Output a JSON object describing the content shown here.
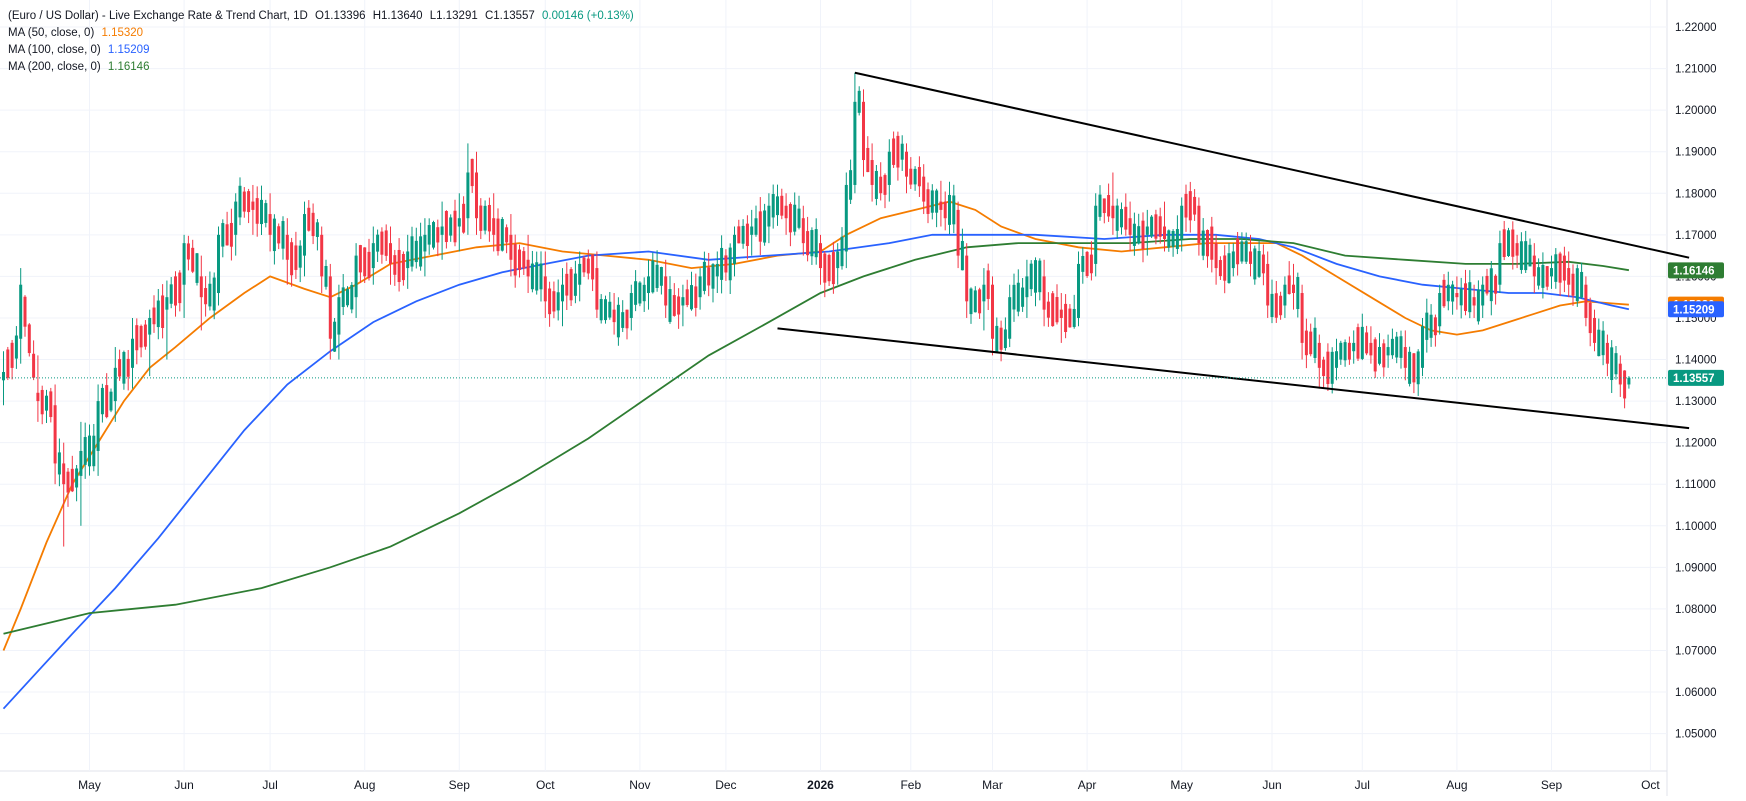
{
  "legend": {
    "title": "(Euro / US Dollar) - Live Exchange Rate & Trend Chart, 1D",
    "open": "O1.13396",
    "high": "H1.13640",
    "low": "L1.13291",
    "close": "C1.13557",
    "change": "0.00146 (+0.13%)",
    "ma50_label": "MA (50, close, 0)",
    "ma50_value": "1.15320",
    "ma100_label": "MA (100, close, 0)",
    "ma100_value": "1.15209",
    "ma200_label": "MA (200, close, 0)",
    "ma200_value": "1.16146"
  },
  "chart_data": {
    "type": "candlestick",
    "y_axis": {
      "position": "right",
      "ylim": [
        1.041,
        1.2265
      ],
      "ticks": [
        1.05,
        1.06,
        1.07,
        1.08,
        1.09,
        1.1,
        1.11,
        1.12,
        1.13,
        1.14,
        1.15,
        1.16,
        1.17,
        1.18,
        1.19,
        1.2,
        1.21,
        1.22
      ],
      "tick_labels": [
        "1.05000",
        "1.06000",
        "1.07000",
        "1.08000",
        "1.09000",
        "1.10000",
        "1.11000",
        "1.12000",
        "1.13000",
        "1.14000",
        "1.15000",
        "1.16000",
        "1.17000",
        "1.18000",
        "1.19000",
        "1.20000",
        "1.21000",
        "1.22000"
      ]
    },
    "x_axis": {
      "tick_labels": [
        "May",
        "Jun",
        "Jul",
        "Aug",
        "Sep",
        "Oct",
        "Nov",
        "Dec",
        "2026",
        "Feb",
        "Mar",
        "Apr",
        "May",
        "Jun",
        "Jul",
        "Aug",
        "Sep",
        "Oct"
      ],
      "tick_index": [
        20,
        42,
        62,
        84,
        106,
        126,
        148,
        168,
        190,
        211,
        230,
        252,
        274,
        295,
        316,
        338,
        360,
        383
      ]
    },
    "candles_ohlc_sampled": [
      [
        0,
        1.135,
        1.142,
        1.129,
        1.137
      ],
      [
        4,
        1.145,
        1.162,
        1.139,
        1.158
      ],
      [
        8,
        1.132,
        1.141,
        1.125,
        1.13
      ],
      [
        12,
        1.129,
        1.134,
        1.11,
        1.115
      ],
      [
        14,
        1.115,
        1.12,
        1.095,
        1.11
      ],
      [
        18,
        1.112,
        1.125,
        1.1,
        1.118
      ],
      [
        22,
        1.118,
        1.134,
        1.112,
        1.13
      ],
      [
        26,
        1.13,
        1.143,
        1.125,
        1.138
      ],
      [
        30,
        1.138,
        1.15,
        1.133,
        1.145
      ],
      [
        34,
        1.146,
        1.152,
        1.136,
        1.15
      ],
      [
        38,
        1.152,
        1.159,
        1.14,
        1.155
      ],
      [
        42,
        1.158,
        1.17,
        1.15,
        1.168
      ],
      [
        46,
        1.16,
        1.165,
        1.147,
        1.155
      ],
      [
        50,
        1.156,
        1.172,
        1.153,
        1.17
      ],
      [
        54,
        1.17,
        1.18,
        1.165,
        1.178
      ],
      [
        58,
        1.178,
        1.182,
        1.17,
        1.176
      ],
      [
        62,
        1.175,
        1.18,
        1.166,
        1.17
      ],
      [
        66,
        1.17,
        1.174,
        1.158,
        1.164
      ],
      [
        70,
        1.165,
        1.178,
        1.16,
        1.175
      ],
      [
        74,
        1.17,
        1.172,
        1.156,
        1.16
      ],
      [
        76,
        1.16,
        1.163,
        1.14,
        1.145
      ],
      [
        78,
        1.146,
        1.158,
        1.14,
        1.155
      ],
      [
        82,
        1.155,
        1.168,
        1.15,
        1.165
      ],
      [
        86,
        1.162,
        1.172,
        1.158,
        1.168
      ],
      [
        90,
        1.168,
        1.172,
        1.158,
        1.163
      ],
      [
        94,
        1.162,
        1.17,
        1.157,
        1.166
      ],
      [
        98,
        1.166,
        1.174,
        1.16,
        1.17
      ],
      [
        102,
        1.17,
        1.178,
        1.164,
        1.172
      ],
      [
        106,
        1.172,
        1.18,
        1.166,
        1.174
      ],
      [
        108,
        1.174,
        1.192,
        1.17,
        1.185
      ],
      [
        110,
        1.185,
        1.19,
        1.17,
        1.174
      ],
      [
        114,
        1.174,
        1.18,
        1.166,
        1.17
      ],
      [
        118,
        1.17,
        1.175,
        1.16,
        1.164
      ],
      [
        122,
        1.164,
        1.17,
        1.156,
        1.16
      ],
      [
        126,
        1.16,
        1.166,
        1.15,
        1.154
      ],
      [
        130,
        1.154,
        1.162,
        1.148,
        1.158
      ],
      [
        134,
        1.158,
        1.166,
        1.154,
        1.163
      ],
      [
        138,
        1.162,
        1.166,
        1.15,
        1.152
      ],
      [
        142,
        1.152,
        1.156,
        1.146,
        1.149
      ],
      [
        146,
        1.15,
        1.158,
        1.147,
        1.156
      ],
      [
        150,
        1.156,
        1.164,
        1.152,
        1.16
      ],
      [
        154,
        1.16,
        1.164,
        1.15,
        1.153
      ],
      [
        158,
        1.153,
        1.158,
        1.148,
        1.155
      ],
      [
        162,
        1.155,
        1.162,
        1.152,
        1.16
      ],
      [
        166,
        1.16,
        1.166,
        1.156,
        1.163
      ],
      [
        170,
        1.163,
        1.172,
        1.16,
        1.17
      ],
      [
        174,
        1.17,
        1.176,
        1.165,
        1.172
      ],
      [
        178,
        1.172,
        1.18,
        1.168,
        1.177
      ],
      [
        182,
        1.177,
        1.18,
        1.17,
        1.174
      ],
      [
        186,
        1.174,
        1.177,
        1.165,
        1.168
      ],
      [
        190,
        1.168,
        1.17,
        1.158,
        1.162
      ],
      [
        194,
        1.162,
        1.168,
        1.158,
        1.166
      ],
      [
        196,
        1.166,
        1.185,
        1.162,
        1.182
      ],
      [
        198,
        1.182,
        1.209,
        1.18,
        1.202
      ],
      [
        200,
        1.202,
        1.205,
        1.184,
        1.188
      ],
      [
        202,
        1.188,
        1.192,
        1.178,
        1.182
      ],
      [
        206,
        1.182,
        1.193,
        1.178,
        1.19
      ],
      [
        210,
        1.19,
        1.192,
        1.18,
        1.184
      ],
      [
        214,
        1.184,
        1.187,
        1.175,
        1.178
      ],
      [
        218,
        1.178,
        1.183,
        1.172,
        1.176
      ],
      [
        222,
        1.176,
        1.178,
        1.162,
        1.165
      ],
      [
        224,
        1.165,
        1.168,
        1.15,
        1.154
      ],
      [
        228,
        1.154,
        1.162,
        1.147,
        1.158
      ],
      [
        230,
        1.158,
        1.16,
        1.141,
        1.145
      ],
      [
        234,
        1.145,
        1.158,
        1.143,
        1.155
      ],
      [
        238,
        1.155,
        1.164,
        1.15,
        1.16
      ],
      [
        242,
        1.16,
        1.164,
        1.148,
        1.152
      ],
      [
        246,
        1.152,
        1.156,
        1.144,
        1.15
      ],
      [
        250,
        1.15,
        1.166,
        1.148,
        1.163
      ],
      [
        254,
        1.163,
        1.18,
        1.16,
        1.177
      ],
      [
        258,
        1.177,
        1.185,
        1.17,
        1.174
      ],
      [
        262,
        1.174,
        1.178,
        1.166,
        1.17
      ],
      [
        266,
        1.17,
        1.176,
        1.165,
        1.172
      ],
      [
        270,
        1.172,
        1.178,
        1.166,
        1.169
      ],
      [
        274,
        1.169,
        1.179,
        1.166,
        1.177
      ],
      [
        278,
        1.177,
        1.179,
        1.165,
        1.168
      ],
      [
        282,
        1.168,
        1.17,
        1.158,
        1.162
      ],
      [
        286,
        1.162,
        1.168,
        1.16,
        1.166
      ],
      [
        290,
        1.166,
        1.17,
        1.16,
        1.163
      ],
      [
        294,
        1.163,
        1.166,
        1.15,
        1.153
      ],
      [
        298,
        1.153,
        1.16,
        1.15,
        1.158
      ],
      [
        300,
        1.158,
        1.163,
        1.152,
        1.156
      ],
      [
        302,
        1.156,
        1.158,
        1.14,
        1.144
      ],
      [
        306,
        1.144,
        1.146,
        1.133,
        1.138
      ],
      [
        310,
        1.138,
        1.145,
        1.135,
        1.142
      ],
      [
        314,
        1.142,
        1.147,
        1.139,
        1.144
      ],
      [
        318,
        1.144,
        1.148,
        1.139,
        1.141
      ],
      [
        322,
        1.141,
        1.146,
        1.138,
        1.143
      ],
      [
        326,
        1.143,
        1.147,
        1.135,
        1.138
      ],
      [
        330,
        1.138,
        1.15,
        1.136,
        1.148
      ],
      [
        334,
        1.148,
        1.158,
        1.146,
        1.156
      ],
      [
        338,
        1.156,
        1.16,
        1.152,
        1.155
      ],
      [
        342,
        1.155,
        1.158,
        1.15,
        1.153
      ],
      [
        344,
        1.153,
        1.16,
        1.15,
        1.158
      ],
      [
        348,
        1.158,
        1.171,
        1.156,
        1.168
      ],
      [
        352,
        1.168,
        1.17,
        1.162,
        1.165
      ],
      [
        356,
        1.165,
        1.168,
        1.156,
        1.16
      ],
      [
        360,
        1.16,
        1.165,
        1.157,
        1.162
      ],
      [
        364,
        1.162,
        1.166,
        1.155,
        1.158
      ],
      [
        368,
        1.158,
        1.16,
        1.148,
        1.15
      ],
      [
        370,
        1.15,
        1.152,
        1.142,
        1.144
      ],
      [
        373,
        1.144,
        1.146,
        1.136,
        1.139
      ],
      [
        376,
        1.139,
        1.141,
        1.131,
        1.134
      ],
      [
        378,
        1.134,
        1.136,
        1.133,
        1.1356
      ]
    ],
    "series": [
      {
        "name": "MA (50, close, 0)",
        "color": "#f57c00",
        "last": 1.1532,
        "points": [
          [
            0,
            1.07
          ],
          [
            4,
            1.08
          ],
          [
            10,
            1.096
          ],
          [
            16,
            1.11
          ],
          [
            22,
            1.12
          ],
          [
            28,
            1.13
          ],
          [
            34,
            1.138
          ],
          [
            40,
            1.143
          ],
          [
            48,
            1.15
          ],
          [
            56,
            1.156
          ],
          [
            62,
            1.16
          ],
          [
            70,
            1.157
          ],
          [
            76,
            1.155
          ],
          [
            82,
            1.158
          ],
          [
            90,
            1.163
          ],
          [
            100,
            1.165
          ],
          [
            110,
            1.167
          ],
          [
            120,
            1.168
          ],
          [
            130,
            1.166
          ],
          [
            140,
            1.165
          ],
          [
            150,
            1.164
          ],
          [
            160,
            1.162
          ],
          [
            170,
            1.163
          ],
          [
            180,
            1.165
          ],
          [
            190,
            1.166
          ],
          [
            196,
            1.17
          ],
          [
            204,
            1.174
          ],
          [
            212,
            1.176
          ],
          [
            220,
            1.178
          ],
          [
            226,
            1.176
          ],
          [
            232,
            1.172
          ],
          [
            240,
            1.169
          ],
          [
            250,
            1.167
          ],
          [
            260,
            1.166
          ],
          [
            270,
            1.167
          ],
          [
            280,
            1.168
          ],
          [
            288,
            1.168
          ],
          [
            296,
            1.168
          ],
          [
            302,
            1.165
          ],
          [
            310,
            1.16
          ],
          [
            318,
            1.155
          ],
          [
            326,
            1.15
          ],
          [
            332,
            1.147
          ],
          [
            338,
            1.146
          ],
          [
            344,
            1.147
          ],
          [
            350,
            1.149
          ],
          [
            356,
            1.151
          ],
          [
            362,
            1.153
          ],
          [
            368,
            1.154
          ],
          [
            374,
            1.1535
          ],
          [
            378,
            1.1532
          ]
        ]
      },
      {
        "name": "MA (100, close, 0)",
        "color": "#2962ff",
        "last": 1.15209,
        "points": [
          [
            0,
            1.056
          ],
          [
            8,
            1.065
          ],
          [
            16,
            1.074
          ],
          [
            26,
            1.085
          ],
          [
            36,
            1.097
          ],
          [
            46,
            1.11
          ],
          [
            56,
            1.123
          ],
          [
            66,
            1.134
          ],
          [
            76,
            1.142
          ],
          [
            86,
            1.149
          ],
          [
            96,
            1.154
          ],
          [
            106,
            1.158
          ],
          [
            116,
            1.161
          ],
          [
            126,
            1.163
          ],
          [
            136,
            1.165
          ],
          [
            150,
            1.166
          ],
          [
            164,
            1.164
          ],
          [
            178,
            1.165
          ],
          [
            192,
            1.166
          ],
          [
            206,
            1.168
          ],
          [
            216,
            1.17
          ],
          [
            226,
            1.17
          ],
          [
            240,
            1.17
          ],
          [
            256,
            1.169
          ],
          [
            270,
            1.17
          ],
          [
            282,
            1.17
          ],
          [
            292,
            1.169
          ],
          [
            300,
            1.167
          ],
          [
            310,
            1.163
          ],
          [
            320,
            1.16
          ],
          [
            330,
            1.158
          ],
          [
            340,
            1.157
          ],
          [
            350,
            1.156
          ],
          [
            358,
            1.156
          ],
          [
            366,
            1.155
          ],
          [
            374,
            1.153
          ],
          [
            378,
            1.1521
          ]
        ]
      },
      {
        "name": "MA (200, close, 0)",
        "color": "#2e7d32",
        "last": 1.16146,
        "points": [
          [
            0,
            1.074
          ],
          [
            20,
            1.079
          ],
          [
            40,
            1.081
          ],
          [
            60,
            1.085
          ],
          [
            76,
            1.09
          ],
          [
            90,
            1.095
          ],
          [
            106,
            1.103
          ],
          [
            120,
            1.111
          ],
          [
            136,
            1.121
          ],
          [
            150,
            1.131
          ],
          [
            164,
            1.141
          ],
          [
            178,
            1.149
          ],
          [
            190,
            1.156
          ],
          [
            200,
            1.16
          ],
          [
            212,
            1.164
          ],
          [
            224,
            1.167
          ],
          [
            236,
            1.168
          ],
          [
            250,
            1.168
          ],
          [
            262,
            1.168
          ],
          [
            276,
            1.169
          ],
          [
            288,
            1.169
          ],
          [
            300,
            1.168
          ],
          [
            312,
            1.165
          ],
          [
            326,
            1.164
          ],
          [
            340,
            1.163
          ],
          [
            352,
            1.163
          ],
          [
            364,
            1.1635
          ],
          [
            372,
            1.1625
          ],
          [
            378,
            1.1615
          ]
        ]
      }
    ],
    "trendlines": [
      {
        "name": "upper-trendline",
        "from": [
          198,
          1.209
        ],
        "to": [
          392,
          1.1645
        ]
      },
      {
        "name": "lower-trendline",
        "from": [
          180,
          1.1475
        ],
        "to": [
          392,
          1.1235
        ]
      }
    ],
    "current_price": 1.13557,
    "price_labels": [
      {
        "text": "1.16146",
        "value": 1.16146,
        "color": "#2e7d32"
      },
      {
        "text": "1.15320",
        "value": 1.1532,
        "color": "#f57c00"
      },
      {
        "text": "1.15209",
        "value": 1.15209,
        "color": "#2962ff"
      },
      {
        "text": "1.13557",
        "value": 1.13557,
        "color": "#089981"
      }
    ],
    "up_color": "#089981",
    "down_color": "#f23645",
    "grid": true
  }
}
